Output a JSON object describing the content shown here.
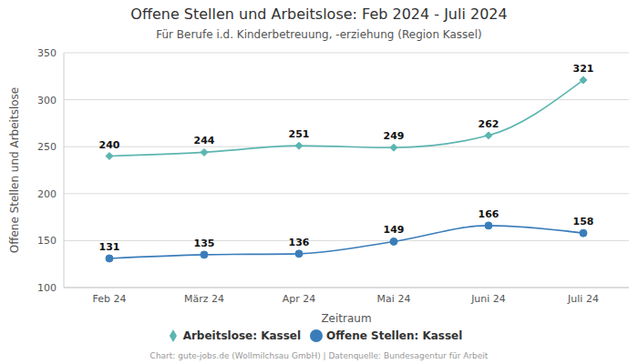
{
  "chart_data": {
    "type": "line",
    "title": "Offene Stellen und Arbeitslose: Feb 2024 - Juli 2024",
    "subtitle": "Für Berufe i.d. Kinderbetreuung, -erziehung (Region Kassel)",
    "source": "Chart: gute-jobs.de (Wollmilchsau GmbH) | Datenquelle: Bundesagentur für Arbeit",
    "x_label": "Zeitraum",
    "y_label": "Offene Stellen und Arbeitslose",
    "categories": [
      "Feb 24",
      "März 24",
      "Apr 24",
      "Mai 24",
      "Juni 24",
      "Juli 24"
    ],
    "series": [
      {
        "name": "Offene Stellen: Kassel",
        "color": "#3a7dba",
        "marker": "circle",
        "line_style": "smooth",
        "values": [
          131,
          135,
          136,
          149,
          166,
          158
        ]
      },
      {
        "name": "Arbeitslose: Kassel",
        "color": "#5bb5b0",
        "marker": "diamond",
        "line_style": "smooth",
        "values": [
          240,
          244,
          251,
          249,
          262,
          321
        ]
      }
    ],
    "ylim": [
      100,
      350
    ],
    "yticks": [
      100,
      150,
      200,
      250,
      300,
      350
    ],
    "grid": true,
    "legend": "bottom",
    "data_labels": true
  }
}
